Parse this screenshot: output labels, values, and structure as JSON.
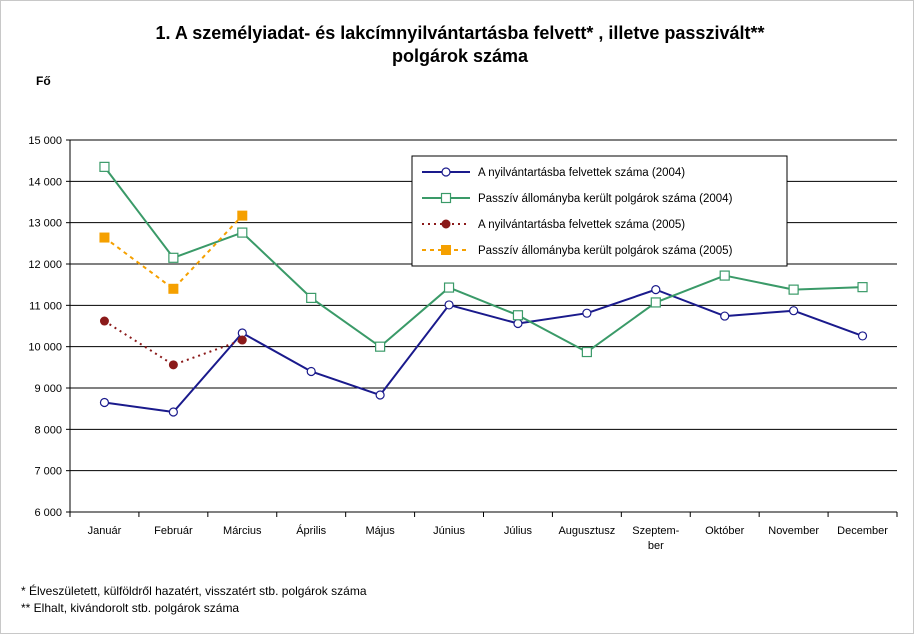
{
  "chart_data": {
    "type": "line",
    "title_line1": "1. A személyiadat- és lakcímnyilvántartásba felvett* , illetve passzivált**",
    "title_line2": "polgárok száma",
    "ylabel": "Fő",
    "ylim": [
      6000,
      15000
    ],
    "yticks": [
      6000,
      7000,
      8000,
      9000,
      10000,
      11000,
      12000,
      13000,
      14000,
      15000
    ],
    "ytick_labels": [
      "6 000",
      "7 000",
      "8 000",
      "9 000",
      "10 000",
      "11 000",
      "12 000",
      "13 000",
      "14 000",
      "15 000"
    ],
    "grid": "horizontal",
    "legend_position": "top-right",
    "categories": [
      "Január",
      "Február",
      "Március",
      "Április",
      "Május",
      "Június",
      "Július",
      "Augusztus",
      "Szeptember",
      "Október",
      "November",
      "December"
    ],
    "category_labels": [
      [
        "Január"
      ],
      [
        "Február"
      ],
      [
        "Március"
      ],
      [
        "Április"
      ],
      [
        "Május"
      ],
      [
        "Június"
      ],
      [
        "Július"
      ],
      [
        "Augusztusz"
      ],
      [
        "Szeptem-",
        "ber"
      ],
      [
        "Október"
      ],
      [
        "November"
      ],
      [
        "December"
      ]
    ],
    "series": [
      {
        "name": "A nyilvántartásba felvettek száma (2004)",
        "color": "#1a1a8c",
        "style": "solid",
        "marker": "circle-open",
        "values": [
          8650,
          8420,
          10330,
          9400,
          8830,
          11010,
          10560,
          10810,
          11380,
          10740,
          10870,
          10260
        ]
      },
      {
        "name": "Passzív állományba került polgárok száma (2004)",
        "color": "#3a9a68",
        "style": "solid",
        "marker": "square-open",
        "values": [
          14350,
          12150,
          12760,
          11180,
          10000,
          11430,
          10760,
          9870,
          11070,
          11720,
          11380,
          11440
        ]
      },
      {
        "name": "A nyilvántartásba felvettek száma (2005)",
        "color": "#8b1a1a",
        "style": "dotted",
        "marker": "circle-filled",
        "values": [
          10620,
          9560,
          10160,
          null,
          null,
          null,
          null,
          null,
          null,
          null,
          null,
          null
        ]
      },
      {
        "name": "Passzív állományba került polgárok száma (2005)",
        "color": "#f5a000",
        "style": "dashed",
        "marker": "square-filled",
        "values": [
          12640,
          11400,
          13170,
          null,
          null,
          null,
          null,
          null,
          null,
          null,
          null,
          null
        ]
      }
    ]
  },
  "footnotes": {
    "note1": "* Élveszületett, külföldről hazatért, visszatért stb. polgárok száma",
    "note2": "** Elhalt, kivándorolt stb. polgárok száma"
  }
}
